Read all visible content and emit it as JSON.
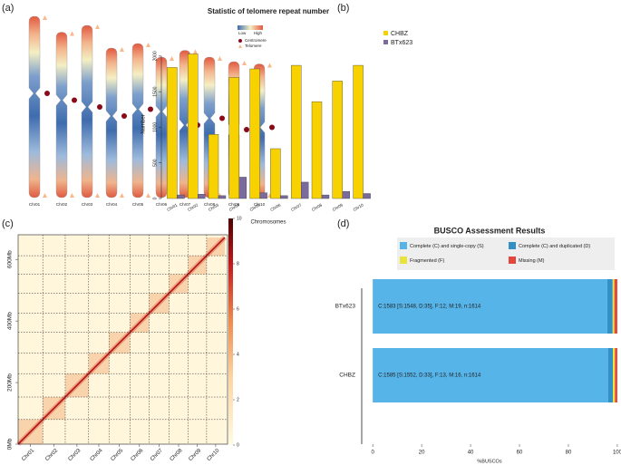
{
  "chart_data": [
    {
      "type": "ideogram",
      "label": "(a)",
      "categories": [
        "Chr01",
        "Chr02",
        "Chr03",
        "Chr04",
        "Chr05",
        "Chr06",
        "Chr07",
        "Chr08",
        "Chr09",
        "Chr10"
      ],
      "lengths": [
        80,
        73,
        76,
        66,
        68,
        62,
        65,
        62,
        60,
        59
      ],
      "centromeres": [
        34,
        30,
        36,
        30,
        29,
        24,
        33,
        27,
        30,
        28
      ],
      "legend": {
        "low": "Low",
        "high": "High",
        "centromere": "Centromere",
        "telomere": "Telomere"
      }
    },
    {
      "type": "bar",
      "label": "(b)",
      "title": "Statistic of telomere repeat number",
      "xlabel": "Chromosomes",
      "ylabel": "Number",
      "categories": [
        "Chr01",
        "Chr02",
        "Chr03",
        "Chr04",
        "Chr05",
        "Chr06",
        "Chr07",
        "Chr08",
        "Chr09",
        "Chr10"
      ],
      "series": [
        {
          "name": "CHBZ",
          "color": "#f7d200",
          "values": [
            1840,
            2030,
            900,
            1700,
            1820,
            700,
            1870,
            1360,
            1650,
            1870
          ]
        },
        {
          "name": "BTx623",
          "color": "#7a6a9e",
          "values": [
            50,
            60,
            40,
            300,
            80,
            40,
            230,
            50,
            100,
            70
          ]
        }
      ],
      "ylim": [
        0,
        2100
      ],
      "yticks": [
        0,
        500,
        1000,
        1500,
        2000
      ],
      "legend": "top-right"
    },
    {
      "type": "heatmap",
      "label": "(c)",
      "categories": [
        "Chr01",
        "Chr02",
        "Chr03",
        "Chr04",
        "Chr05",
        "Chr06",
        "Chr07",
        "Chr08",
        "Chr09",
        "Chr10"
      ],
      "ylim": [
        0,
        680
      ],
      "yticks": [
        {
          "value": 0,
          "label": "0Mb"
        },
        {
          "value": 200,
          "label": "200Mb"
        },
        {
          "value": 400,
          "label": "400Mb"
        },
        {
          "value": 600,
          "label": "600Mb"
        }
      ],
      "zlim": [
        0,
        10
      ],
      "zticks": [
        0,
        2,
        4,
        6,
        8,
        10
      ]
    },
    {
      "type": "stacked_bar",
      "label": "(d)",
      "title": "BUSCO Assessment Results",
      "xlabel": "%BUSCOs",
      "categories": [
        "BTx623",
        "CHBZ"
      ],
      "series": [
        {
          "name": "Complete (C) and single-copy (S)",
          "color": "#56b4e9",
          "values": [
            95.9,
            96.2
          ]
        },
        {
          "name": "Complete (C) and duplicated (D)",
          "color": "#3390c4",
          "values": [
            2.2,
            2.0
          ]
        },
        {
          "name": "Fragmented (F)",
          "color": "#e9e23a",
          "values": [
            0.7,
            0.8
          ]
        },
        {
          "name": "Missing (M)",
          "color": "#e4473b",
          "values": [
            1.2,
            1.0
          ]
        }
      ],
      "annotations": [
        "C:1583 [S:1548, D:35], F:12, M:19, n:1614",
        "C:1585 [S:1552, D:33], F:13, M:16, n:1614"
      ],
      "xlim": [
        -4.5,
        101.5
      ],
      "xticks": [
        0,
        20,
        40,
        60,
        80,
        100
      ]
    }
  ]
}
